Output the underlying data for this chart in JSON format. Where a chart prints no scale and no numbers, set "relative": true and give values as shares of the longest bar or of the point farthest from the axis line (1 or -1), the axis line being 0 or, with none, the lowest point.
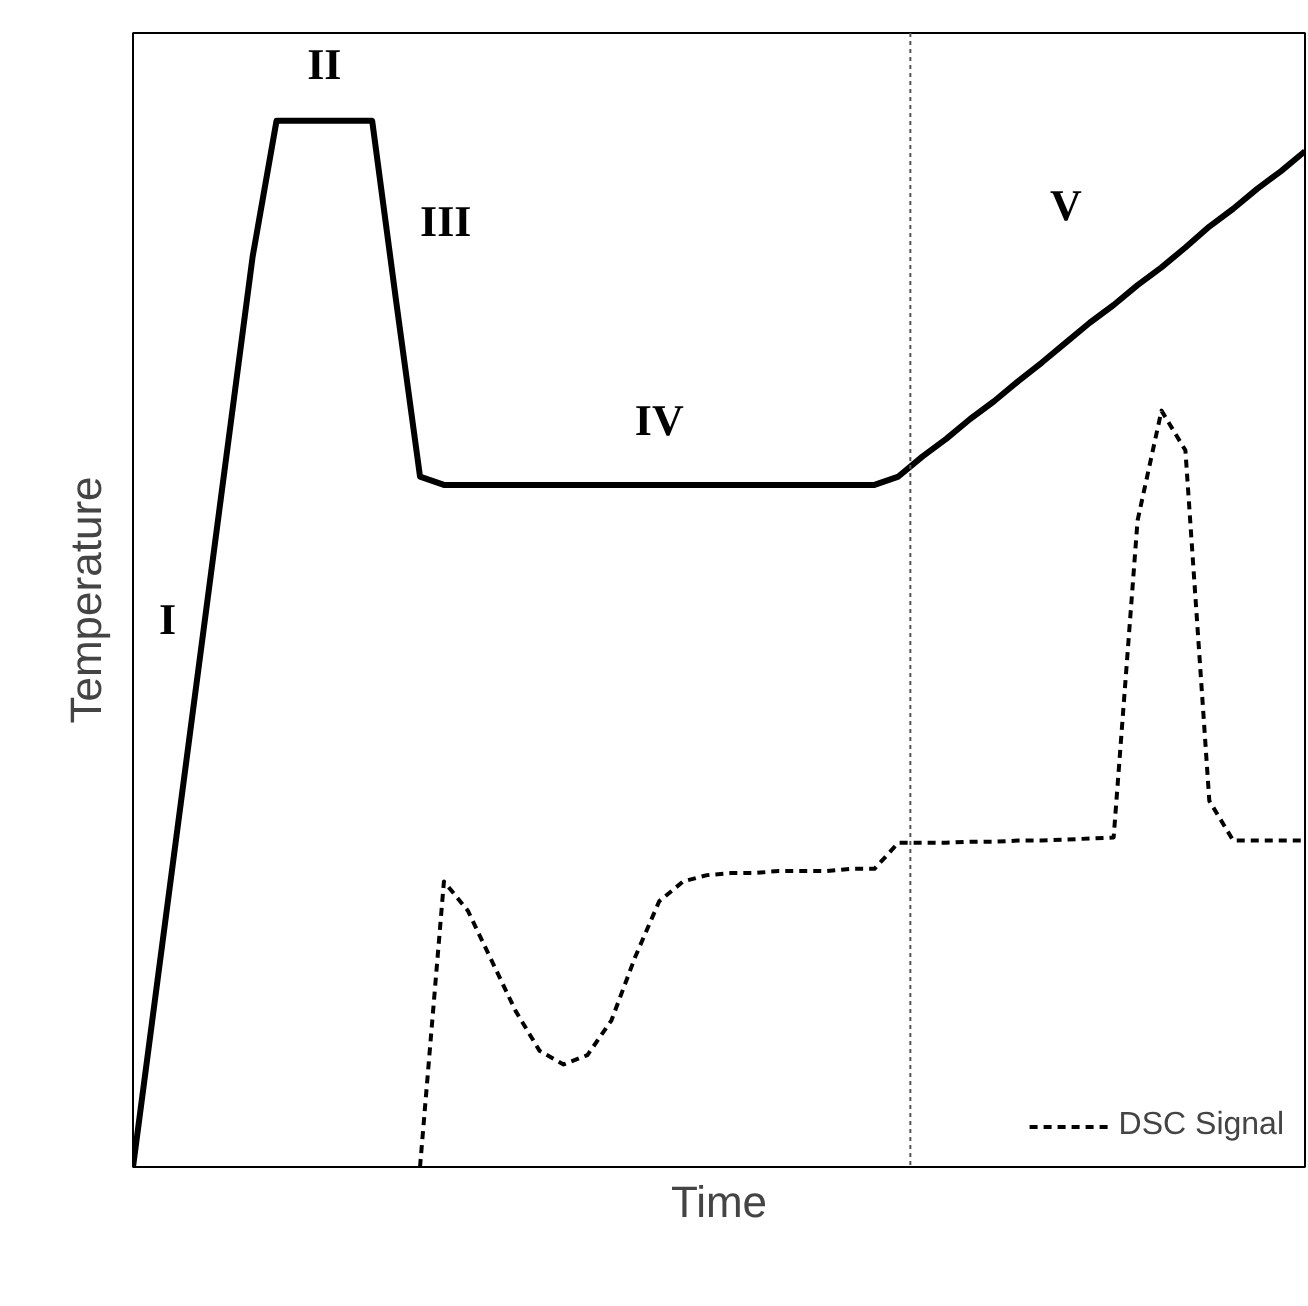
{
  "chart_data": {
    "type": "line",
    "relative": true,
    "xlabel": "Time",
    "ylabel": "Temperature",
    "grid": false,
    "legend": "bottom right",
    "marker": "none",
    "categories": [
      null,
      null,
      null,
      null,
      null,
      null,
      null,
      null,
      null,
      null,
      null,
      null,
      null,
      null,
      null,
      null,
      null,
      null,
      null,
      null,
      null,
      null,
      null,
      null,
      null,
      null,
      null,
      null,
      null,
      null,
      null,
      null,
      null,
      null,
      null,
      null,
      null,
      null,
      null,
      null,
      null,
      null,
      null,
      null,
      null,
      null,
      null,
      null,
      null,
      null
    ],
    "series": [
      {
        "color": "#000000",
        "line_style": "solid",
        "values": [
          0,
          0.174,
          0.348,
          0.522,
          0.696,
          0.87,
          1,
          1,
          1,
          1,
          1,
          0.828,
          0.66,
          0.652,
          0.652,
          0.652,
          0.652,
          0.652,
          0.652,
          0.652,
          0.652,
          0.652,
          0.652,
          0.652,
          0.652,
          0.652,
          0.652,
          0.652,
          0.652,
          0.652,
          0.652,
          0.652,
          0.66,
          0.679,
          0.696,
          0.715,
          0.732,
          0.751,
          0.769,
          0.788,
          0.807,
          0.824,
          0.843,
          0.86,
          0.879,
          0.899,
          0.916,
          0.935,
          0.952,
          0.971
        ]
      },
      {
        "name": "DSC Signal",
        "color": "#000000",
        "line_style": "dashed",
        "values": [
          null,
          null,
          null,
          null,
          null,
          null,
          null,
          null,
          null,
          null,
          null,
          null,
          0,
          0.273,
          0.245,
          0.197,
          0.149,
          0.111,
          0.098,
          0.107,
          0.14,
          0.201,
          0.254,
          0.273,
          0.279,
          0.281,
          0.281,
          0.283,
          0.283,
          0.283,
          0.285,
          0.285,
          0.31,
          0.31,
          0.31,
          0.311,
          0.311,
          0.312,
          0.312,
          0.313,
          0.314,
          0.315,
          0.618,
          0.723,
          0.685,
          0.35,
          0.312,
          0.312,
          0.312,
          0.312
        ]
      }
    ],
    "annotations": [
      "I",
      "II",
      "III",
      "IV",
      "V"
    ]
  }
}
